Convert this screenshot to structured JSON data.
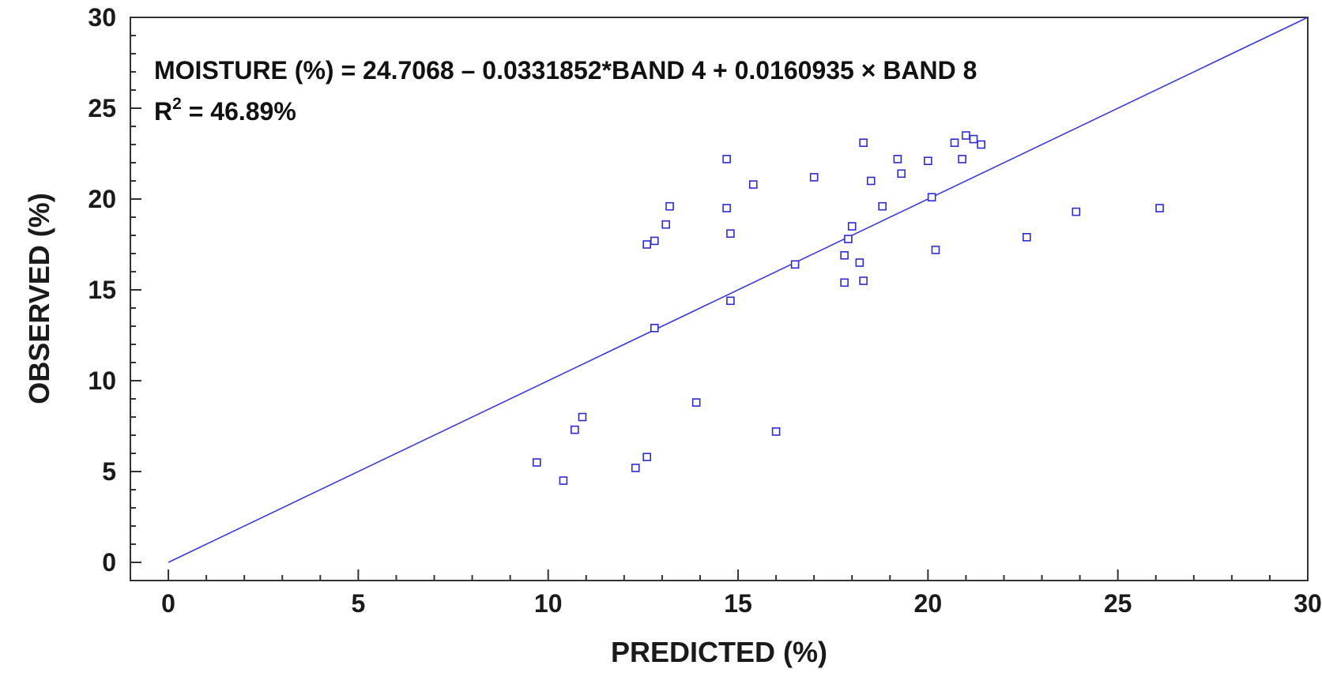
{
  "chart_data": {
    "type": "scatter",
    "xlabel": "PREDICTED (%)",
    "ylabel": "OBSERVED (%)",
    "xlim": [
      -1,
      30
    ],
    "ylim": [
      -1,
      30
    ],
    "xticks": [
      0,
      5,
      10,
      15,
      20,
      25,
      30
    ],
    "yticks": [
      0,
      5,
      10,
      15,
      20,
      25,
      30
    ],
    "grid": false,
    "annotations": {
      "equation": "MOISTURE (%)  = 24.7068 – 0.0331852*BAND 4 + 0.0160935 × BAND 8",
      "r2_prefix": "R",
      "r2_sup": "2",
      "r2_value": " = 46.89%"
    },
    "reference_line": {
      "x": [
        0,
        30
      ],
      "y": [
        0,
        30
      ]
    },
    "colors": {
      "points": "#2b2bd9",
      "line": "#3b3bdc",
      "axes": "#333333"
    },
    "points": [
      {
        "x": 9.7,
        "y": 5.5
      },
      {
        "x": 10.4,
        "y": 4.5
      },
      {
        "x": 10.7,
        "y": 7.3
      },
      {
        "x": 10.9,
        "y": 8.0
      },
      {
        "x": 12.3,
        "y": 5.2
      },
      {
        "x": 12.6,
        "y": 5.8
      },
      {
        "x": 12.6,
        "y": 17.5
      },
      {
        "x": 12.8,
        "y": 17.7
      },
      {
        "x": 12.8,
        "y": 12.9
      },
      {
        "x": 13.1,
        "y": 18.6
      },
      {
        "x": 13.2,
        "y": 19.6
      },
      {
        "x": 13.9,
        "y": 8.8
      },
      {
        "x": 14.7,
        "y": 22.2
      },
      {
        "x": 14.7,
        "y": 19.5
      },
      {
        "x": 14.8,
        "y": 18.1
      },
      {
        "x": 14.8,
        "y": 14.4
      },
      {
        "x": 15.4,
        "y": 20.8
      },
      {
        "x": 16.0,
        "y": 7.2
      },
      {
        "x": 16.5,
        "y": 16.4
      },
      {
        "x": 17.0,
        "y": 21.2
      },
      {
        "x": 17.8,
        "y": 15.4
      },
      {
        "x": 17.8,
        "y": 16.9
      },
      {
        "x": 17.9,
        "y": 17.8
      },
      {
        "x": 18.0,
        "y": 18.5
      },
      {
        "x": 18.2,
        "y": 16.5
      },
      {
        "x": 18.3,
        "y": 15.5
      },
      {
        "x": 18.3,
        "y": 23.1
      },
      {
        "x": 18.5,
        "y": 21.0
      },
      {
        "x": 18.8,
        "y": 19.6
      },
      {
        "x": 19.2,
        "y": 22.2
      },
      {
        "x": 19.3,
        "y": 21.4
      },
      {
        "x": 20.0,
        "y": 22.1
      },
      {
        "x": 20.1,
        "y": 20.1
      },
      {
        "x": 20.2,
        "y": 17.2
      },
      {
        "x": 20.7,
        "y": 23.1
      },
      {
        "x": 20.9,
        "y": 22.2
      },
      {
        "x": 21.0,
        "y": 23.5
      },
      {
        "x": 21.2,
        "y": 23.3
      },
      {
        "x": 21.4,
        "y": 23.0
      },
      {
        "x": 22.6,
        "y": 17.9
      },
      {
        "x": 23.9,
        "y": 19.3
      },
      {
        "x": 26.1,
        "y": 19.5
      }
    ]
  }
}
